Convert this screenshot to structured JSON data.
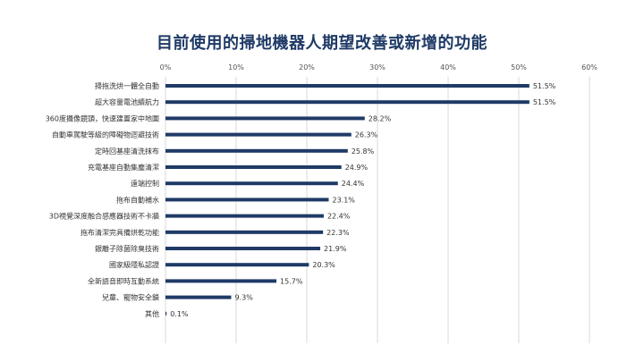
{
  "chart_data": {
    "type": "bar",
    "orientation": "horizontal",
    "title": "目前使用的掃地機器人期望改善或新增的功能",
    "xlabel": "",
    "ylabel": "",
    "xlim": [
      0,
      60
    ],
    "x_ticks": [
      "0%",
      "10%",
      "20%",
      "30%",
      "40%",
      "50%",
      "60%"
    ],
    "x_tick_values": [
      0,
      10,
      20,
      30,
      40,
      50,
      60
    ],
    "grid": true,
    "legend": "none",
    "bar_color": "#1f3a66",
    "categories": [
      "掃拖洗烘一體全自動",
      "超大容量電池續航力",
      "360度攝像鏡頭，快速建置家中地圖",
      "自動車駕駛等級的障礙物迴避技術",
      "定時回基座清洗抹布",
      "充電基座自動集塵清潔",
      "遠端控制",
      "拖布自動補水",
      "3D視覺深度融合感應器技術不卡牆",
      "拖布清潔完具備烘乾功能",
      "銀離子除菌除臭技術",
      "國家級隱私認證",
      "全新語音即時互動系統",
      "兒童、寵物安全鎖",
      "其他"
    ],
    "values": [
      51.5,
      51.5,
      28.2,
      26.3,
      25.8,
      24.9,
      24.4,
      23.1,
      22.4,
      22.3,
      21.9,
      20.3,
      15.7,
      9.3,
      0.1
    ],
    "value_labels": [
      "51.5%",
      "51.5%",
      "28.2%",
      "26.3%",
      "25.8%",
      "24.9%",
      "24.4%",
      "23.1%",
      "22.4%",
      "22.3%",
      "21.9%",
      "20.3%",
      "15.7%",
      "9.3%",
      "0.1%"
    ]
  }
}
